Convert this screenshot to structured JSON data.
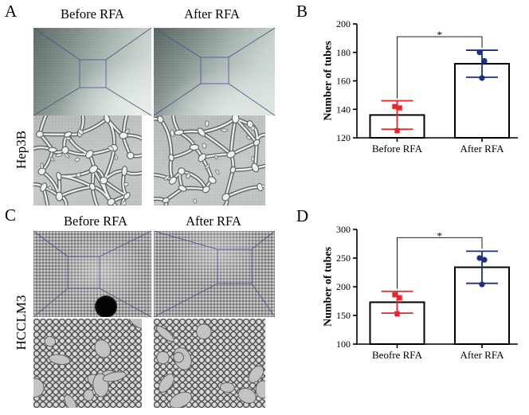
{
  "figure": {
    "panel_a": {
      "label": "A",
      "before_title": "Before RFA",
      "after_title": "After RFA",
      "cell_line": "Hep3B"
    },
    "panel_b": {
      "label": "B"
    },
    "panel_c": {
      "label": "C",
      "before_title": "Before RFA",
      "after_title": "After RFA",
      "cell_line": "HCCLM3"
    },
    "panel_d": {
      "label": "D"
    }
  },
  "colors": {
    "before_marker": "#e3262c",
    "after_marker": "#1e2f7e",
    "zoom_outline": "#4d5190",
    "bar_fill": "#ffffff",
    "bar_stroke": "#000000"
  },
  "chart_data": [
    {
      "type": "bar",
      "title": "",
      "xlabel": "",
      "ylabel": "Number of tubes",
      "categories": [
        "Before RFA",
        "After RFA"
      ],
      "values": [
        136,
        172
      ],
      "error": [
        10,
        9.5
      ],
      "points": [
        [
          142,
          141,
          125
        ],
        [
          180,
          174,
          162
        ]
      ],
      "ylim": [
        120,
        200
      ],
      "yticks": [
        120,
        140,
        160,
        180,
        200
      ],
      "grid": false,
      "significance": [
        {
          "from": 0,
          "to": 1,
          "label": "*"
        }
      ]
    },
    {
      "type": "bar",
      "title": "",
      "xlabel": "",
      "ylabel": "Number of tubes",
      "categories": [
        "Beofre RFA",
        "After RFA"
      ],
      "values": [
        173,
        234
      ],
      "error": [
        19,
        28
      ],
      "points": [
        [
          186,
          181,
          153
        ],
        [
          250,
          247,
          204
        ]
      ],
      "ylim": [
        100,
        300
      ],
      "yticks": [
        100,
        150,
        200,
        250,
        300
      ],
      "grid": false,
      "significance": [
        {
          "from": 0,
          "to": 1,
          "label": "*"
        }
      ]
    }
  ]
}
